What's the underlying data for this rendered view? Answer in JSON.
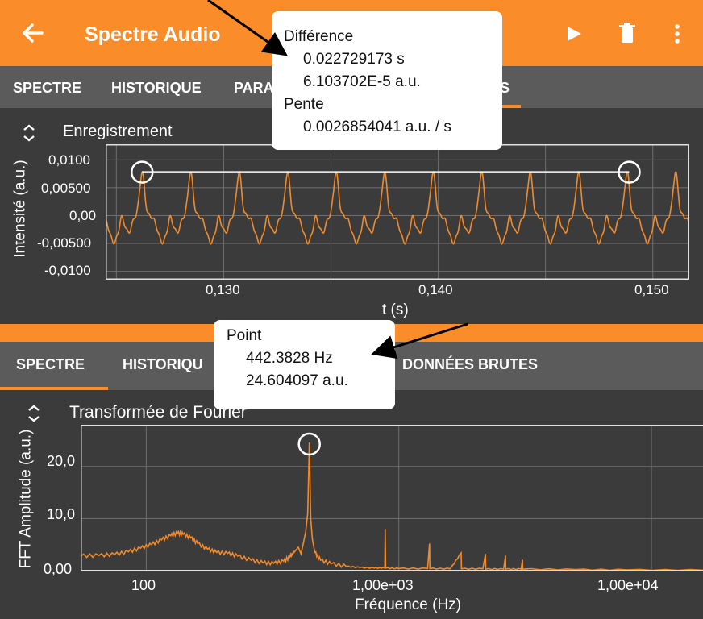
{
  "top": {
    "title": "Spectre Audio",
    "tabs": [
      "SPECTRE",
      "HISTORIQUE",
      "PARA",
      "S"
    ],
    "chart_title": "Enregistrement",
    "y_axis_label": "Intensité (a.u.)",
    "x_axis_label": "t (s)",
    "y_ticks": [
      "0,0100",
      "0,00500",
      "0,00",
      "-0,00500",
      "-0,0100"
    ],
    "x_ticks": [
      "0,130",
      "0,140",
      "0,150"
    ],
    "popup": {
      "diff_label": "Différence",
      "diff_time": "0.022729173 s",
      "diff_amp": "6.103702E-5 a.u.",
      "slope_label": "Pente",
      "slope_value": "0.0026854041 a.u. /  s"
    }
  },
  "bottom": {
    "tabs": [
      "SPECTRE",
      "HISTORIQU",
      "DONNÉES BRUTES"
    ],
    "chart_title": "Transformée de Fourier",
    "y_axis_label": "FFT Amplitude (a.u.)",
    "x_axis_label": "Fréquence (Hz)",
    "y_ticks": [
      "20,0",
      "10,0",
      "0,00"
    ],
    "x_ticks": [
      "100",
      "1,00e+03",
      "1,00e+04"
    ],
    "popup": {
      "point_label": "Point",
      "freq": "442.3828 Hz",
      "amp": "24.604097 a.u."
    }
  },
  "colors": {
    "accent": "#fb8c2a",
    "tabbar": "#5b5b5b",
    "background": "#3b3b3b"
  },
  "chart_data": [
    {
      "type": "line",
      "title": "Enregistrement",
      "xlabel": "t (s)",
      "ylabel": "Intensité (a.u.)",
      "xlim": [
        0.1245,
        0.1517
      ],
      "ylim": [
        -0.0115,
        0.0128
      ],
      "period": 0.00226,
      "first_peak": 0.1262,
      "peak_value": 0.0078,
      "trough_value": -0.0048,
      "measure_segment": {
        "x": [
          0.1262,
          0.1489
        ],
        "y": [
          0.0078,
          0.0078
        ]
      }
    },
    {
      "type": "line",
      "title": "Transformée de Fourier",
      "xlabel": "Fréquence (Hz)",
      "ylabel": "FFT Amplitude (a.u.)",
      "xscale": "log",
      "xlim": [
        55,
        16000
      ],
      "ylim": [
        0,
        28
      ],
      "points": [
        [
          55,
          2.8
        ],
        [
          65,
          2.9
        ],
        [
          75,
          3.1
        ],
        [
          85,
          3.6
        ],
        [
          95,
          4.3
        ],
        [
          105,
          5.0
        ],
        [
          115,
          5.9
        ],
        [
          125,
          6.7
        ],
        [
          133,
          7.2
        ],
        [
          140,
          7.0
        ],
        [
          150,
          6.3
        ],
        [
          160,
          5.2
        ],
        [
          175,
          4.1
        ],
        [
          190,
          3.5
        ],
        [
          210,
          3.3
        ],
        [
          230,
          2.8
        ],
        [
          260,
          2.0
        ],
        [
          290,
          1.5
        ],
        [
          320,
          1.4
        ],
        [
          350,
          1.8
        ],
        [
          370,
          2.6
        ],
        [
          385,
          3.5
        ],
        [
          400,
          4.5
        ],
        [
          410,
          3.2
        ],
        [
          420,
          5.5
        ],
        [
          428,
          7.5
        ],
        [
          436,
          11.0
        ],
        [
          442.4,
          24.6
        ],
        [
          448,
          10.0
        ],
        [
          455,
          6.0
        ],
        [
          465,
          3.5
        ],
        [
          490,
          2.0
        ],
        [
          540,
          1.3
        ],
        [
          620,
          0.8
        ],
        [
          700,
          0.6
        ],
        [
          800,
          0.5
        ],
        [
          880,
          0.5
        ],
        [
          883,
          8.0
        ],
        [
          887,
          0.5
        ],
        [
          1000,
          0.4
        ],
        [
          1300,
          0.4
        ],
        [
          1323,
          5.2
        ],
        [
          1327,
          0.4
        ],
        [
          1600,
          0.35
        ],
        [
          1765,
          3.4
        ],
        [
          1770,
          0.35
        ],
        [
          2150,
          0.35
        ],
        [
          2203,
          3.2
        ],
        [
          2208,
          0.3
        ],
        [
          2600,
          0.3
        ],
        [
          2645,
          2.9
        ],
        [
          2650,
          0.3
        ],
        [
          3050,
          0.3
        ],
        [
          3088,
          2.1
        ],
        [
          3095,
          0.3
        ],
        [
          5000,
          0.2
        ],
        [
          8000,
          0.15
        ],
        [
          16000,
          0.1
        ]
      ],
      "marked_point": {
        "x": 442.3828,
        "y": 24.604097
      }
    }
  ]
}
